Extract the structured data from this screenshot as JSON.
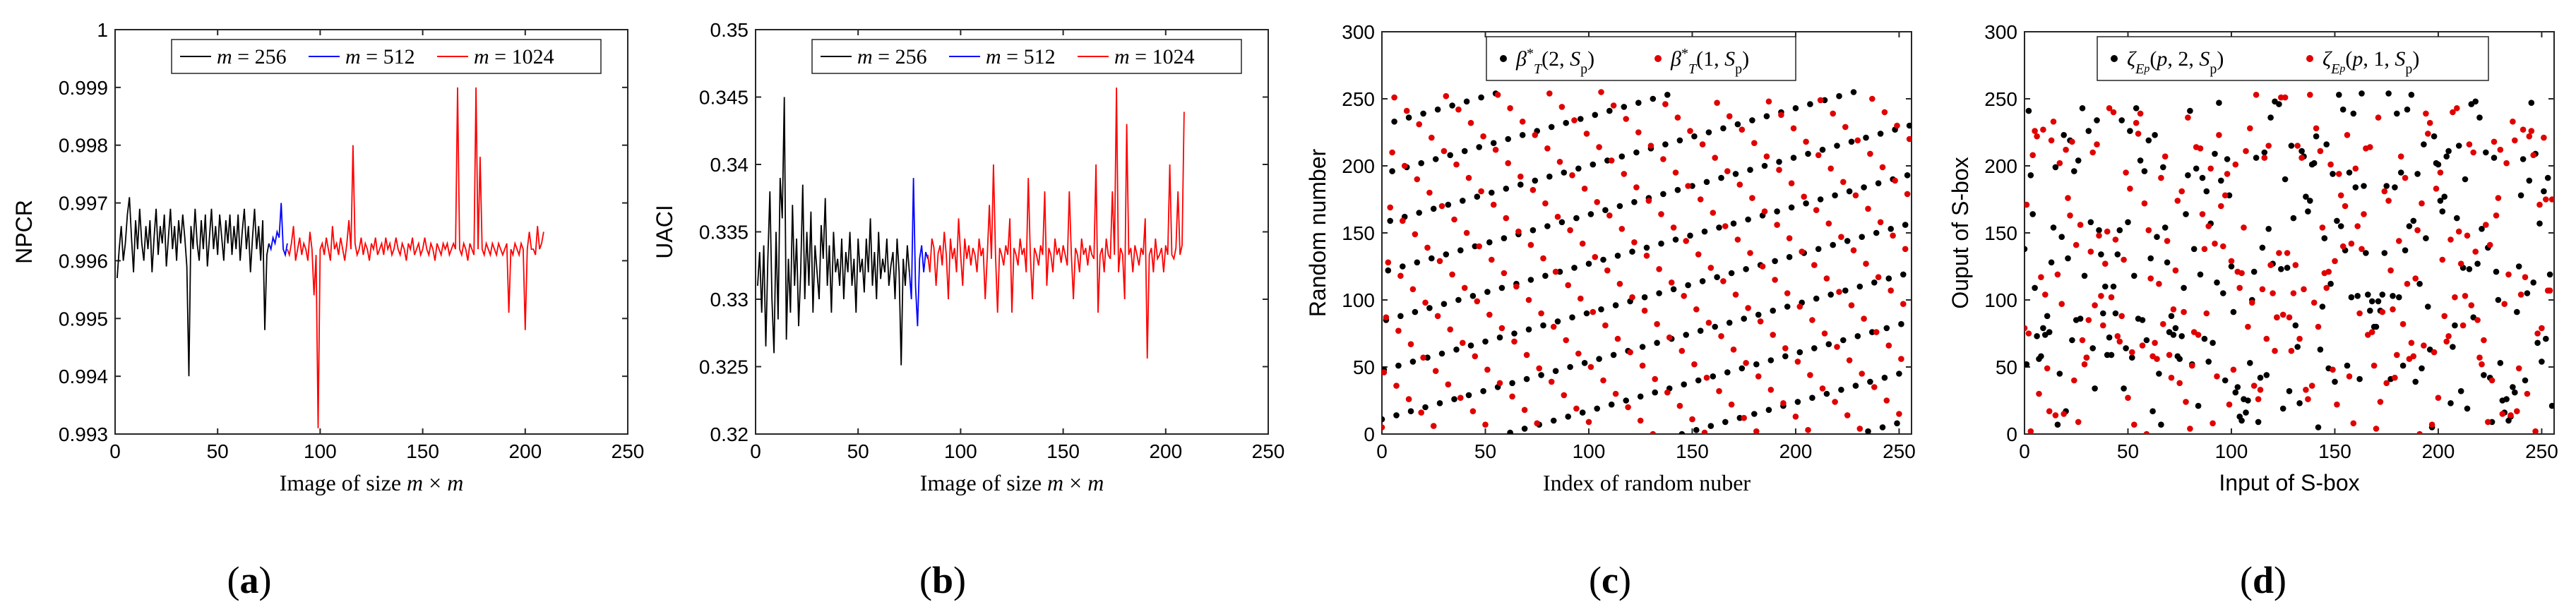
{
  "figure": {
    "panel_labels": [
      "(a)",
      "(b)",
      "(c)",
      "(d)"
    ]
  },
  "chart_data": [
    {
      "id": "a",
      "type": "line",
      "title": "",
      "xlabel": "Image of size m × m",
      "ylabel": "NPCR",
      "xlim": [
        0,
        250
      ],
      "ylim": [
        0.993,
        1.0
      ],
      "xticks": [
        "0",
        "50",
        "100",
        "150",
        "200",
        "250"
      ],
      "yticks": [
        "0.993",
        "0.994",
        "0.995",
        "0.996",
        "0.997",
        "0.998",
        "0.999",
        "1"
      ],
      "legend_position": "top",
      "series": [
        {
          "name": "m = 256",
          "color": "#000000",
          "x": [
            1,
            2,
            3,
            4,
            5,
            6,
            7,
            8,
            9,
            10,
            11,
            12,
            13,
            14,
            15,
            16,
            17,
            18,
            19,
            20,
            21,
            22,
            23,
            24,
            25,
            26,
            27,
            28,
            29,
            30,
            31,
            32,
            33,
            34,
            35,
            36,
            37,
            38,
            39,
            40,
            41,
            42,
            43,
            44,
            45,
            46,
            47,
            48,
            49,
            50,
            51,
            52,
            53,
            54,
            55,
            56,
            57,
            58,
            59,
            60,
            61,
            62,
            63,
            64,
            65,
            66,
            67,
            68,
            69,
            70,
            71,
            72,
            73,
            74,
            75
          ],
          "y": [
            0.9957,
            0.9962,
            0.9966,
            0.996,
            0.9963,
            0.9968,
            0.9971,
            0.9964,
            0.9958,
            0.9967,
            0.9962,
            0.9969,
            0.9963,
            0.996,
            0.9966,
            0.9962,
            0.9967,
            0.9958,
            0.9964,
            0.9969,
            0.9961,
            0.9966,
            0.9963,
            0.9968,
            0.9959,
            0.9964,
            0.9969,
            0.9962,
            0.9966,
            0.996,
            0.9967,
            0.9963,
            0.9968,
            0.9964,
            0.9959,
            0.994,
            0.9966,
            0.9962,
            0.9969,
            0.9963,
            0.996,
            0.9967,
            0.9962,
            0.9968,
            0.9959,
            0.9964,
            0.9969,
            0.9962,
            0.9966,
            0.9961,
            0.9968,
            0.9964,
            0.996,
            0.9967,
            0.9963,
            0.9968,
            0.9961,
            0.9966,
            0.9962,
            0.9968,
            0.996,
            0.9965,
            0.9969,
            0.9962,
            0.9966,
            0.9958,
            0.9964,
            0.9969,
            0.9962,
            0.9966,
            0.996,
            0.9967,
            0.9948,
            0.9961,
            0.9963
          ]
        },
        {
          "name": "m = 512",
          "color": "#0000ff",
          "x": [
            75,
            76,
            77,
            78,
            79,
            80,
            81,
            82,
            83,
            84
          ],
          "y": [
            0.9963,
            0.9962,
            0.9964,
            0.9963,
            0.9965,
            0.9964,
            0.997,
            0.9962,
            0.9961,
            0.9963
          ]
        },
        {
          "name": "m = 1024",
          "color": "#ff0000",
          "x": [
            84,
            85,
            86,
            87,
            88,
            89,
            90,
            91,
            92,
            93,
            94,
            95,
            96,
            97,
            98,
            99,
            100,
            101,
            102,
            103,
            104,
            105,
            106,
            107,
            108,
            109,
            110,
            111,
            112,
            113,
            114,
            115,
            116,
            117,
            118,
            119,
            120,
            121,
            122,
            123,
            124,
            125,
            126,
            127,
            128,
            129,
            130,
            131,
            132,
            133,
            134,
            135,
            136,
            137,
            138,
            139,
            140,
            141,
            142,
            143,
            144,
            145,
            146,
            147,
            148,
            149,
            150,
            151,
            152,
            153,
            154,
            155,
            156,
            157,
            158,
            159,
            160,
            161,
            162,
            163,
            164,
            165,
            166,
            167,
            168,
            169,
            170,
            171,
            172,
            173,
            174,
            175,
            176,
            177,
            178,
            179,
            180,
            181,
            182,
            183,
            184,
            185,
            186,
            187,
            188,
            189,
            190,
            191,
            192,
            193,
            194,
            195,
            196,
            197,
            198,
            199,
            200,
            201,
            202,
            203,
            204,
            205,
            206,
            207,
            208,
            209
          ],
          "y": [
            0.9962,
            0.9961,
            0.9963,
            0.9966,
            0.996,
            0.9962,
            0.9964,
            0.9961,
            0.9963,
            0.9962,
            0.996,
            0.9965,
            0.9962,
            0.9954,
            0.9961,
            0.9931,
            0.9962,
            0.9963,
            0.9961,
            0.9964,
            0.9962,
            0.996,
            0.9966,
            0.9962,
            0.9963,
            0.9961,
            0.9964,
            0.9962,
            0.996,
            0.9963,
            0.9967,
            0.9962,
            0.998,
            0.9963,
            0.9961,
            0.9962,
            0.9964,
            0.9961,
            0.9963,
            0.9962,
            0.996,
            0.9963,
            0.9962,
            0.9964,
            0.9961,
            0.9962,
            0.9963,
            0.9961,
            0.9964,
            0.9962,
            0.9963,
            0.9961,
            0.9962,
            0.9964,
            0.9962,
            0.9961,
            0.9963,
            0.9962,
            0.996,
            0.9963,
            0.9962,
            0.9964,
            0.9961,
            0.9962,
            0.9963,
            0.9961,
            0.9962,
            0.9964,
            0.9962,
            0.9961,
            0.9963,
            0.9962,
            0.996,
            0.9963,
            0.9962,
            0.9961,
            0.9963,
            0.9962,
            0.9963,
            0.9961,
            0.9962,
            0.9963,
            0.9962,
            0.999,
            0.9962,
            0.9961,
            0.9963,
            0.9962,
            0.996,
            0.9963,
            0.9962,
            0.9961,
            0.999,
            0.9962,
            0.9978,
            0.9962,
            0.9961,
            0.9963,
            0.9962,
            0.9961,
            0.9963,
            0.9962,
            0.9961,
            0.9963,
            0.9962,
            0.9961,
            0.9962,
            0.9963,
            0.9951,
            0.9962,
            0.9961,
            0.9963,
            0.9962,
            0.9961,
            0.9963,
            0.9962,
            0.9948,
            0.9962,
            0.9965,
            0.9962,
            0.9962,
            0.9961,
            0.9966,
            0.9962,
            0.9963,
            0.9965
          ]
        }
      ]
    },
    {
      "id": "b",
      "type": "line",
      "title": "",
      "xlabel": "Image of size m × m",
      "ylabel": "UACI",
      "xlim": [
        0,
        250
      ],
      "ylim": [
        0.32,
        0.35
      ],
      "xticks": [
        "0",
        "50",
        "100",
        "150",
        "200",
        "250"
      ],
      "yticks": [
        "0.32",
        "0.325",
        "0.33",
        "0.335",
        "0.34",
        "0.345",
        "0.35"
      ],
      "legend_position": "top",
      "series": [
        {
          "name": "m = 256",
          "color": "#000000",
          "x": [
            1,
            2,
            3,
            4,
            5,
            6,
            7,
            8,
            9,
            10,
            11,
            12,
            13,
            14,
            15,
            16,
            17,
            18,
            19,
            20,
            21,
            22,
            23,
            24,
            25,
            26,
            27,
            28,
            29,
            30,
            31,
            32,
            33,
            34,
            35,
            36,
            37,
            38,
            39,
            40,
            41,
            42,
            43,
            44,
            45,
            46,
            47,
            48,
            49,
            50,
            51,
            52,
            53,
            54,
            55,
            56,
            57,
            58,
            59,
            60,
            61,
            62,
            63,
            64,
            65,
            66,
            67,
            68,
            69,
            70,
            71,
            72,
            73,
            74,
            75
          ],
          "y": [
            0.331,
            0.3335,
            0.329,
            0.334,
            0.3265,
            0.333,
            0.338,
            0.33,
            0.326,
            0.335,
            0.3285,
            0.339,
            0.336,
            0.345,
            0.327,
            0.333,
            0.329,
            0.337,
            0.331,
            0.3345,
            0.328,
            0.332,
            0.3385,
            0.33,
            0.335,
            0.331,
            0.3365,
            0.329,
            0.334,
            0.332,
            0.33,
            0.3355,
            0.333,
            0.3375,
            0.331,
            0.334,
            0.329,
            0.335,
            0.332,
            0.333,
            0.331,
            0.3345,
            0.33,
            0.3335,
            0.332,
            0.335,
            0.331,
            0.333,
            0.329,
            0.3345,
            0.332,
            0.333,
            0.3305,
            0.3345,
            0.332,
            0.336,
            0.331,
            0.3335,
            0.33,
            0.335,
            0.3315,
            0.333,
            0.332,
            0.3345,
            0.331,
            0.3325,
            0.3335,
            0.33,
            0.3345,
            0.332,
            0.3251,
            0.333,
            0.331,
            0.334,
            0.332
          ]
        },
        {
          "name": "m = 512",
          "color": "#0000ff",
          "x": [
            75,
            76,
            77,
            78,
            79,
            80,
            81,
            82,
            83,
            84
          ],
          "y": [
            0.332,
            0.33,
            0.339,
            0.331,
            0.328,
            0.333,
            0.334,
            0.332,
            0.3335,
            0.333
          ]
        },
        {
          "name": "m = 1024",
          "color": "#ff0000",
          "x": [
            84,
            85,
            86,
            87,
            88,
            89,
            90,
            91,
            92,
            93,
            94,
            95,
            96,
            97,
            98,
            99,
            100,
            101,
            102,
            103,
            104,
            105,
            106,
            107,
            108,
            109,
            110,
            111,
            112,
            113,
            114,
            115,
            116,
            117,
            118,
            119,
            120,
            121,
            122,
            123,
            124,
            125,
            126,
            127,
            128,
            129,
            130,
            131,
            132,
            133,
            134,
            135,
            136,
            137,
            138,
            139,
            140,
            141,
            142,
            143,
            144,
            145,
            146,
            147,
            148,
            149,
            150,
            151,
            152,
            153,
            154,
            155,
            156,
            157,
            158,
            159,
            160,
            161,
            162,
            163,
            164,
            165,
            166,
            167,
            168,
            169,
            170,
            171,
            172,
            173,
            174,
            175,
            176,
            177,
            178,
            179,
            180,
            181,
            182,
            183,
            184,
            185,
            186,
            187,
            188,
            189,
            190,
            191,
            192,
            193,
            194,
            195,
            196,
            197,
            198,
            199,
            200,
            201,
            202,
            203,
            204,
            205,
            206,
            207,
            208,
            209
          ],
          "y": [
            0.3333,
            0.332,
            0.3345,
            0.3338,
            0.331,
            0.3334,
            0.334,
            0.3325,
            0.335,
            0.3333,
            0.33,
            0.3345,
            0.333,
            0.3338,
            0.332,
            0.336,
            0.3333,
            0.331,
            0.3345,
            0.333,
            0.334,
            0.3325,
            0.3338,
            0.3333,
            0.332,
            0.3345,
            0.3332,
            0.3338,
            0.33,
            0.3333,
            0.337,
            0.333,
            0.34,
            0.3333,
            0.329,
            0.3338,
            0.3333,
            0.3325,
            0.334,
            0.3333,
            0.336,
            0.329,
            0.3338,
            0.3333,
            0.3325,
            0.3345,
            0.3333,
            0.3338,
            0.332,
            0.339,
            0.3333,
            0.33,
            0.3338,
            0.3333,
            0.3325,
            0.334,
            0.3333,
            0.338,
            0.331,
            0.3338,
            0.3333,
            0.332,
            0.3345,
            0.3333,
            0.3338,
            0.3327,
            0.334,
            0.3333,
            0.3325,
            0.338,
            0.3333,
            0.33,
            0.3338,
            0.3333,
            0.332,
            0.3345,
            0.3333,
            0.3338,
            0.3325,
            0.334,
            0.3333,
            0.333,
            0.34,
            0.329,
            0.3333,
            0.3338,
            0.332,
            0.3345,
            0.3333,
            0.333,
            0.338,
            0.3333,
            0.3457,
            0.332,
            0.3338,
            0.3333,
            0.33,
            0.343,
            0.3333,
            0.3338,
            0.332,
            0.334,
            0.3333,
            0.3325,
            0.3338,
            0.3333,
            0.336,
            0.3256,
            0.3333,
            0.3338,
            0.332,
            0.3345,
            0.333,
            0.3333,
            0.3338,
            0.332,
            0.334,
            0.3333,
            0.34,
            0.3333,
            0.333,
            0.3338,
            0.338,
            0.3333,
            0.334,
            0.3439
          ]
        }
      ]
    },
    {
      "id": "c",
      "type": "scatter",
      "title": "",
      "xlabel": "Index of random nuber",
      "ylabel": "Random number",
      "xlim": [
        0,
        256
      ],
      "ylim": [
        0,
        300
      ],
      "xticks": [
        "0",
        "50",
        "100",
        "150",
        "200",
        "250"
      ],
      "yticks": [
        "0",
        "50",
        "100",
        "150",
        "200",
        "250",
        "300"
      ],
      "legend_position": "top",
      "series": [
        {
          "name": "β*_T(2, S_p)",
          "color": "#000000",
          "generator": {
            "a": 37,
            "b": 11,
            "mod": 256,
            "scale": 256,
            "n": 256
          }
        },
        {
          "name": "β*_T(1, S_p)",
          "color": "#e00000",
          "generator": {
            "a": 41,
            "b": 5,
            "mod": 256,
            "scale": 256,
            "n": 256
          }
        }
      ]
    },
    {
      "id": "d",
      "type": "scatter",
      "title": "",
      "xlabel": "Input of S-box",
      "ylabel": "Ouput of S-box",
      "xlim": [
        0,
        256
      ],
      "ylim": [
        0,
        300
      ],
      "xticks": [
        "0",
        "50",
        "100",
        "150",
        "200",
        "250"
      ],
      "yticks": [
        "0",
        "50",
        "100",
        "150",
        "200",
        "250",
        "300"
      ],
      "legend_position": "top",
      "series": [
        {
          "name": "ζ_{E_p}(p, 2, S_p)",
          "color": "#000000",
          "generator": {
            "a": 97,
            "b": 13,
            "mod": 257,
            "scale": 256,
            "n": 256,
            "nonlinear": true
          }
        },
        {
          "name": "ζ_{E_p}(p, 1, S_p)",
          "color": "#e00000",
          "generator": {
            "a": 151,
            "b": 29,
            "mod": 257,
            "scale": 256,
            "n": 256,
            "nonlinear": true
          }
        }
      ]
    }
  ]
}
